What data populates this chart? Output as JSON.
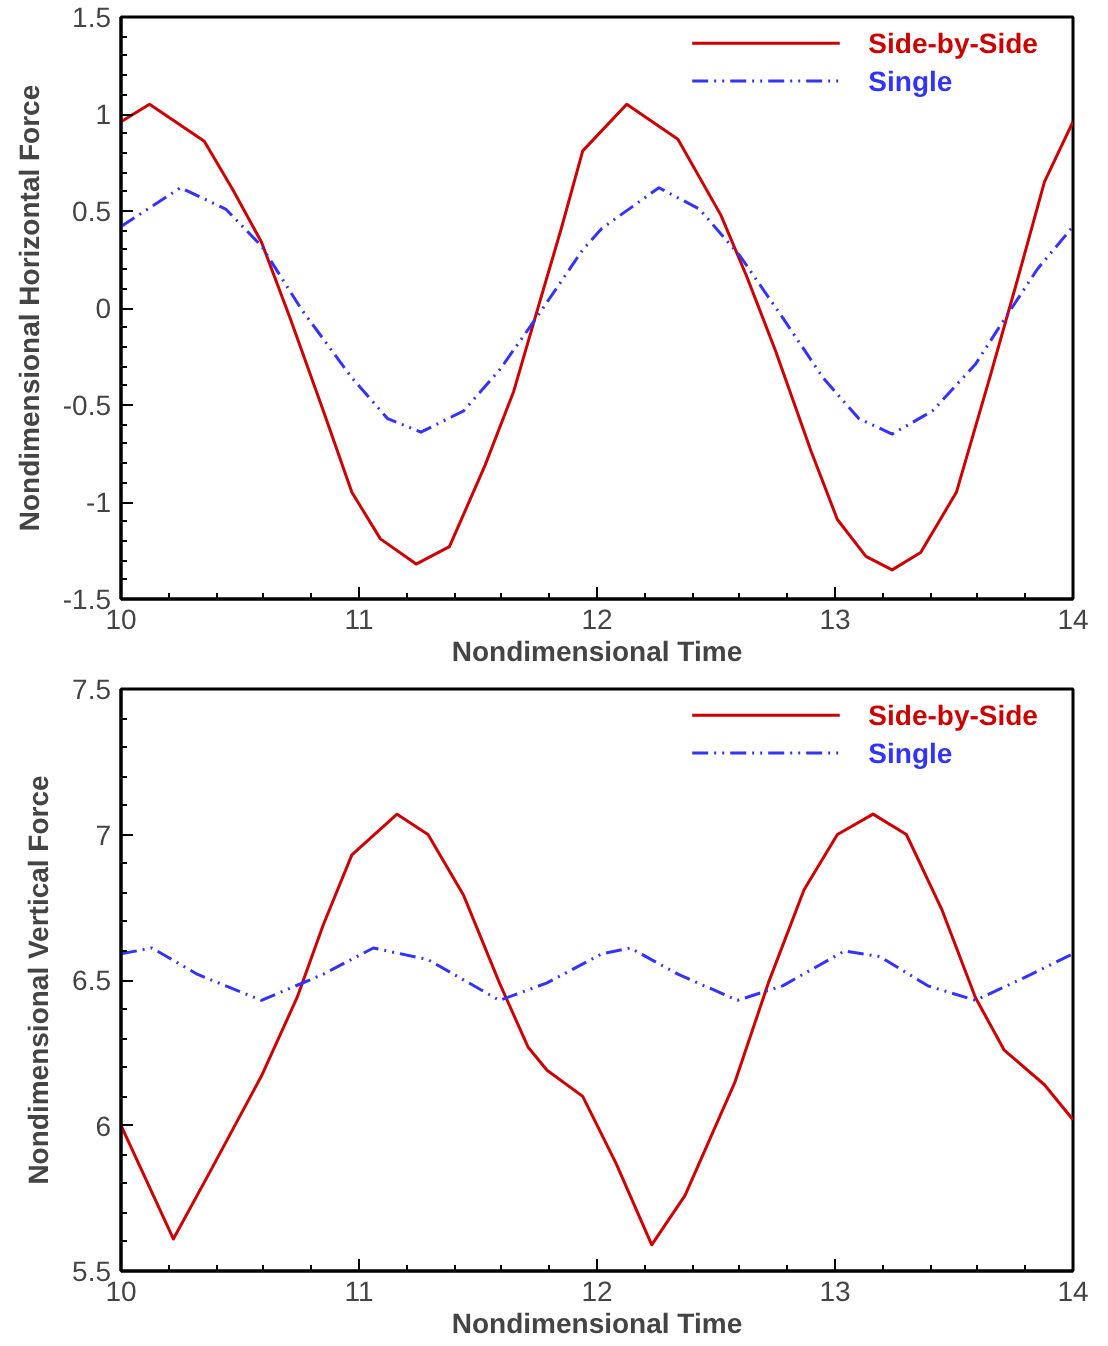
{
  "chart_data": [
    {
      "type": "line",
      "xlabel": "Nondimensional Time",
      "ylabel": "Nondimensional Horizontal Force",
      "xlim": [
        10,
        14
      ],
      "ylim": [
        -1.5,
        1.5
      ],
      "xticks": [
        10,
        11,
        12,
        13,
        14
      ],
      "yticks": [
        -1.5,
        -1,
        -0.5,
        0,
        0.5,
        1,
        1.5
      ],
      "grid": false,
      "legend": "top right",
      "series": [
        {
          "name": "Side-by-Side",
          "color": "#cc0000",
          "line_style": "solid",
          "x": [
            10.0,
            10.12,
            10.35,
            10.47,
            10.59,
            10.71,
            10.85,
            10.97,
            11.09,
            11.24,
            11.38,
            11.53,
            11.65,
            11.74,
            11.85,
            11.94,
            12.125,
            12.34,
            12.52,
            12.63,
            12.75,
            12.9,
            13.01,
            13.13,
            13.24,
            13.36,
            13.51,
            13.65,
            13.77,
            13.88,
            14.0
          ],
          "values": [
            0.96,
            1.05,
            0.86,
            0.61,
            0.34,
            -0.05,
            -0.53,
            -0.95,
            -1.19,
            -1.32,
            -1.23,
            -0.81,
            -0.43,
            -0.05,
            0.41,
            0.81,
            1.05,
            0.87,
            0.48,
            0.16,
            -0.22,
            -0.74,
            -1.09,
            -1.28,
            -1.35,
            -1.26,
            -0.95,
            -0.36,
            0.16,
            0.65,
            0.96
          ]
        },
        {
          "name": "Single",
          "color": "#3333ff",
          "line_style": "dashdotdot",
          "x": [
            10.0,
            10.25,
            10.44,
            10.59,
            10.76,
            10.97,
            11.12,
            11.26,
            11.44,
            11.59,
            11.74,
            11.94,
            12.02,
            12.26,
            12.43,
            12.6,
            12.78,
            12.95,
            13.1,
            13.24,
            13.41,
            13.59,
            13.7,
            13.85,
            14.0
          ],
          "values": [
            0.42,
            0.62,
            0.51,
            0.32,
            -0.01,
            -0.36,
            -0.57,
            -0.64,
            -0.53,
            -0.32,
            -0.06,
            0.3,
            0.41,
            0.62,
            0.51,
            0.27,
            -0.05,
            -0.36,
            -0.57,
            -0.65,
            -0.53,
            -0.29,
            -0.08,
            0.2,
            0.42
          ]
        }
      ]
    },
    {
      "type": "line",
      "xlabel": "Nondimensional Time",
      "ylabel": "Nondimensional Vertical Force",
      "xlim": [
        10,
        14
      ],
      "ylim": [
        5.5,
        7.5
      ],
      "xticks": [
        10,
        11,
        12,
        13,
        14
      ],
      "yticks": [
        5.5,
        6,
        6.5,
        7,
        7.5
      ],
      "grid": false,
      "legend": "top right",
      "series": [
        {
          "name": "Side-by-Side",
          "color": "#cc0000",
          "line_style": "solid",
          "x": [
            10.0,
            10.22,
            10.38,
            10.59,
            10.74,
            10.85,
            10.97,
            11.16,
            11.29,
            11.44,
            11.59,
            11.71,
            11.79,
            11.94,
            12.08,
            12.23,
            12.37,
            12.58,
            12.72,
            12.87,
            13.01,
            13.16,
            13.3,
            13.45,
            13.59,
            13.71,
            13.88,
            14.0
          ],
          "values": [
            6.0,
            5.61,
            5.85,
            6.17,
            6.44,
            6.69,
            6.93,
            7.07,
            7.0,
            6.79,
            6.49,
            6.27,
            6.19,
            6.1,
            5.87,
            5.59,
            5.76,
            6.15,
            6.49,
            6.81,
            7.0,
            7.07,
            7.0,
            6.74,
            6.44,
            6.26,
            6.14,
            6.02
          ]
        },
        {
          "name": "Single",
          "color": "#3333ff",
          "line_style": "dashdotdot",
          "x": [
            10.0,
            10.13,
            10.32,
            10.59,
            10.85,
            11.06,
            11.29,
            11.59,
            11.79,
            12.02,
            12.14,
            12.34,
            12.59,
            12.78,
            13.04,
            13.19,
            13.39,
            13.59,
            13.8,
            14.0
          ],
          "values": [
            6.59,
            6.61,
            6.52,
            6.43,
            6.52,
            6.61,
            6.57,
            6.43,
            6.49,
            6.59,
            6.61,
            6.52,
            6.43,
            6.48,
            6.6,
            6.58,
            6.48,
            6.43,
            6.51,
            6.59
          ]
        }
      ]
    }
  ]
}
